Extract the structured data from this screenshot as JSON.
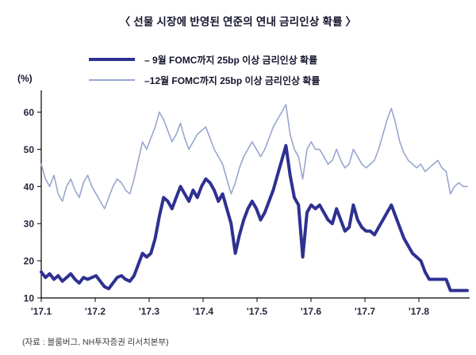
{
  "title": "〈 선물 시장에 반영된 연준의 연내 금리인상 확률 〉",
  "y_axis_unit": "(%)",
  "source_note": "(자료 : 블룸버그, NH투자증권 리서치본부)",
  "legend": {
    "items": [
      {
        "label": "– 9월 FOMC까지 25bp 이상 금리인상 확률"
      },
      {
        "label": "–12월 FOMC까지 25bp 이상 금리인상 확률"
      }
    ]
  },
  "colors": {
    "series_september": "#2e3191",
    "series_december": "#98a6cf",
    "axis": "#000000",
    "text": "#15152e"
  },
  "chart_data": {
    "type": "line",
    "title": "선물 시장에 반영된 연준의 연내 금리인상 확률",
    "ylabel": "(%)",
    "ylim": [
      10,
      65
    ],
    "yticks": [
      10,
      20,
      30,
      40,
      50,
      60
    ],
    "x_tick_labels": [
      "'17.1",
      "'17.2",
      "'17.3",
      "'17.4",
      "'17.5",
      "'17.6",
      "'17.7",
      "'17.8"
    ],
    "x_range_months": [
      0,
      7.9
    ],
    "grid": false,
    "legend_position": "top",
    "series": [
      {
        "name": "9월 FOMC까지 25bp 이상 금리인상 확률",
        "color": "#2e3191",
        "width": 4,
        "values": [
          17,
          15.5,
          16.5,
          15,
          16,
          14.5,
          15.5,
          16.5,
          15,
          14,
          15.5,
          15,
          15.5,
          16,
          14.5,
          13,
          12.5,
          14,
          15.5,
          16,
          15,
          14.5,
          16,
          19,
          22,
          21,
          22,
          26,
          32,
          37,
          36,
          34,
          37,
          40,
          38,
          36,
          39,
          37,
          40,
          42,
          41,
          39,
          36,
          38,
          34,
          30,
          22,
          27,
          31,
          34,
          36,
          34,
          31,
          33,
          36,
          39,
          43,
          47,
          51,
          43,
          37,
          35,
          21,
          33,
          35,
          34,
          35,
          33,
          31,
          30,
          34,
          31,
          28,
          29,
          35,
          31,
          29,
          28,
          28,
          27,
          29,
          31,
          33,
          35,
          32,
          29,
          26,
          24,
          22,
          21,
          20,
          17,
          15,
          15,
          15,
          15,
          15,
          12,
          12,
          12,
          12,
          12
        ]
      },
      {
        "name": "12월 FOMC까지 25bp 이상 금리인상 확률",
        "color": "#98a6cf",
        "width": 1.6,
        "values": [
          46,
          42,
          40,
          43,
          38,
          36,
          40,
          42,
          39,
          37,
          41,
          43,
          40,
          38,
          36,
          34,
          37,
          40,
          42,
          41,
          39,
          38,
          42,
          47,
          52,
          50,
          53,
          56,
          60,
          58,
          55,
          52,
          54,
          57,
          53,
          50,
          52,
          54,
          55,
          56,
          53,
          50,
          48,
          46,
          42,
          38,
          41,
          45,
          48,
          50,
          52,
          50,
          48,
          50,
          53,
          56,
          58,
          60,
          62,
          54,
          50,
          48,
          42,
          50,
          52,
          50,
          50,
          48,
          46,
          47,
          50,
          47,
          45,
          46,
          50,
          48,
          46,
          45,
          46,
          47,
          50,
          54,
          58,
          61,
          57,
          52,
          49,
          47,
          46,
          45,
          46,
          44,
          45,
          46,
          47,
          45,
          44,
          38,
          40,
          41,
          40,
          40
        ]
      }
    ]
  }
}
